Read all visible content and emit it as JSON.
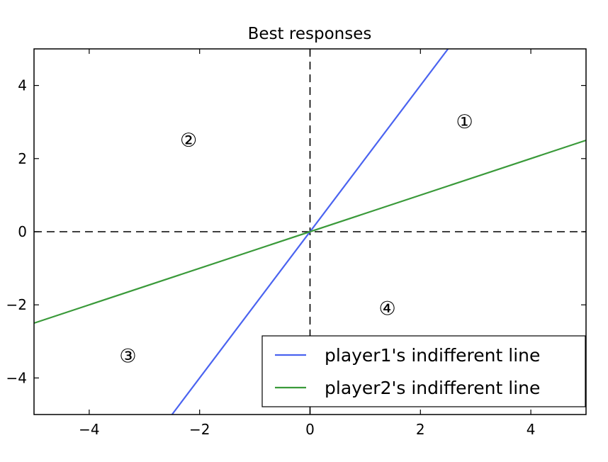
{
  "chart_data": {
    "type": "line",
    "title": "Best responses",
    "xlabel": "",
    "ylabel": "",
    "xlim": [
      -5,
      5
    ],
    "ylim": [
      -5,
      5
    ],
    "xticks": [
      -4,
      -2,
      0,
      2,
      4
    ],
    "yticks": [
      -4,
      -2,
      0,
      2,
      4
    ],
    "xtick_labels": [
      "−4",
      "−2",
      "0",
      "2",
      "4"
    ],
    "ytick_labels": [
      "−4",
      "−2",
      "0",
      "2",
      "4"
    ],
    "grid": false,
    "legend_position": "lower-right",
    "series": [
      {
        "name": "player1's indifferent line",
        "color": "#4a63f0",
        "x": [
          -2.5,
          2.5
        ],
        "y": [
          -5,
          5
        ]
      },
      {
        "name": "player2's indifferent line",
        "color": "#3a9a3a",
        "x": [
          -5,
          5
        ],
        "y": [
          -2.5,
          2.5
        ]
      }
    ],
    "reference_lines": [
      {
        "orientation": "horizontal",
        "value": 0,
        "style": "dashed",
        "color": "#000000"
      },
      {
        "orientation": "vertical",
        "value": 0,
        "style": "dashed",
        "color": "#000000"
      }
    ],
    "annotations": [
      {
        "text": "①",
        "x": 2.8,
        "y": 3.0
      },
      {
        "text": "②",
        "x": -2.2,
        "y": 2.5
      },
      {
        "text": "③",
        "x": -3.3,
        "y": -3.4
      },
      {
        "text": "④",
        "x": 1.4,
        "y": -2.1
      }
    ]
  }
}
